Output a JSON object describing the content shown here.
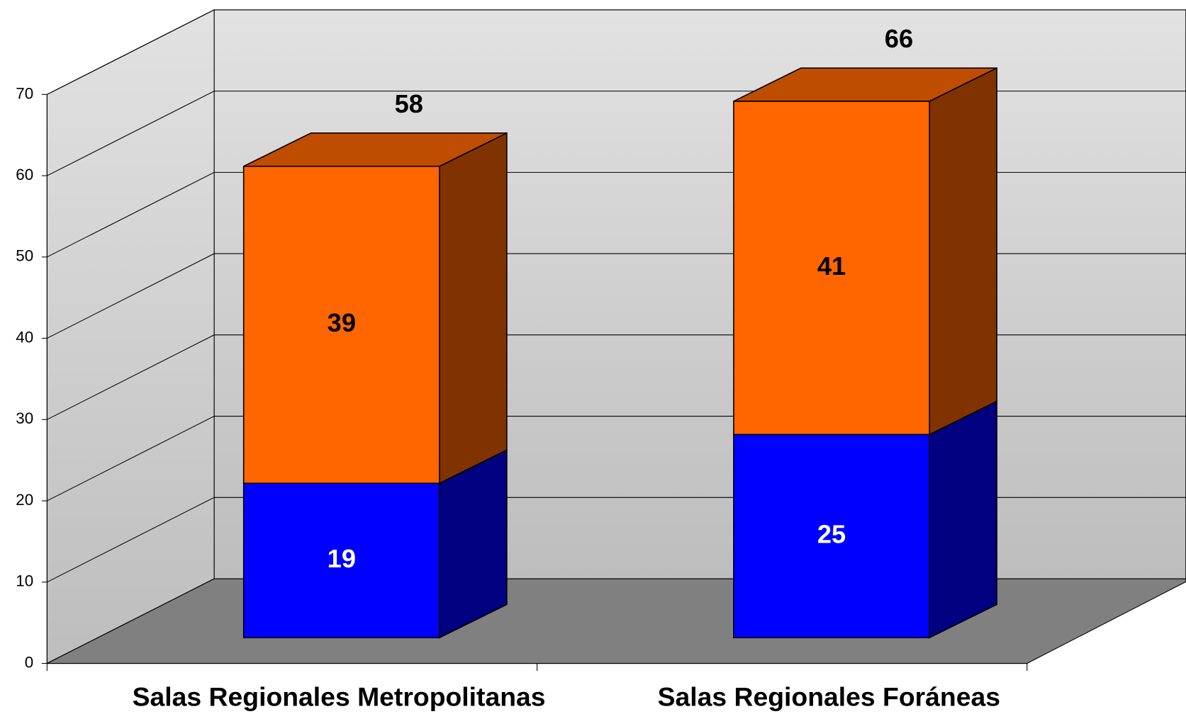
{
  "chart_data": {
    "type": "bar3d_stacked",
    "categories": [
      "Salas Regionales Metropolitanas",
      "Salas Regionales Foráneas"
    ],
    "series": [
      {
        "color": "#0000ff",
        "values": [
          19,
          25
        ]
      },
      {
        "color": "#ff6600",
        "values": [
          39,
          41
        ]
      }
    ],
    "totals": [
      58,
      66
    ],
    "ylim": [
      0,
      70
    ],
    "yticks": [
      0,
      10,
      20,
      30,
      40,
      50,
      60,
      70
    ],
    "grid": true
  }
}
